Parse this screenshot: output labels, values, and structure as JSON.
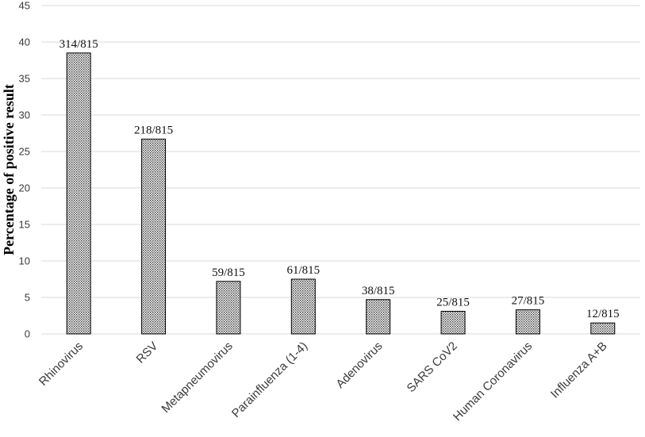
{
  "chart_data": {
    "type": "bar",
    "title": "",
    "xlabel": "",
    "ylabel": "Percentage of positive result",
    "ylim": [
      0,
      45
    ],
    "yticks": [
      0,
      5,
      10,
      15,
      20,
      25,
      30,
      35,
      40,
      45
    ],
    "grid": true,
    "categories": [
      "Rhinovirus",
      "RSV",
      "Metapneumovirus",
      "Parainfluenza (1-4)",
      "Adenovirus",
      "SARS CoV2",
      "Human Coronavirus",
      "Influenza A+B"
    ],
    "values": [
      38.5,
      26.7,
      7.2,
      7.5,
      4.7,
      3.1,
      3.3,
      1.5
    ],
    "data_labels": [
      "314/815",
      "218/815",
      "59/815",
      "61/815",
      "38/815",
      "25/815",
      "27/815",
      "12/815"
    ],
    "bar_pattern": "dotted",
    "bar_color": "#000000"
  }
}
